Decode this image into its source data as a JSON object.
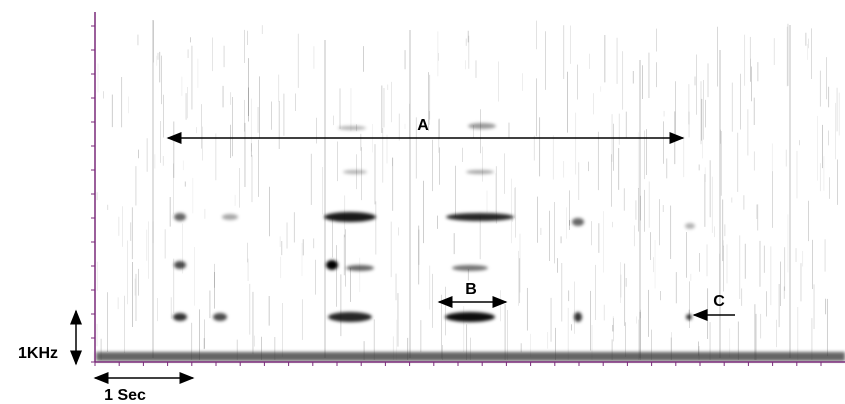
{
  "annotations": {
    "a": "A",
    "b": "B",
    "c": "C",
    "frequency_scale": "1KHz",
    "time_scale": "1 Sec"
  }
}
